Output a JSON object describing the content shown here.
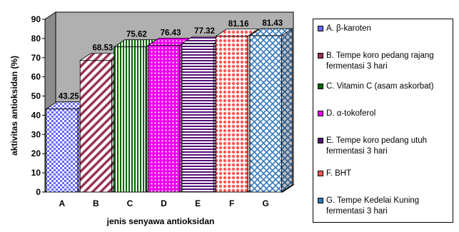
{
  "chart_data": {
    "type": "bar",
    "ylabel": "aktivitas antioksidan (%)",
    "xlabel": "jenis  senyawa antioksidan",
    "ylim": [
      0,
      90
    ],
    "yticks": [
      0,
      10,
      20,
      30,
      40,
      50,
      60,
      70,
      80,
      90
    ],
    "categories": [
      "A",
      "B",
      "C",
      "D",
      "E",
      "F",
      "G"
    ],
    "values": [
      43.25,
      68.53,
      75.62,
      76.43,
      77.32,
      81.16,
      81.43
    ],
    "value_labels": [
      "43.25",
      "68.53",
      "75.62",
      "76.43",
      "77.32",
      "81.16",
      "81.43"
    ],
    "three_d": true,
    "legend_placement": "right",
    "series": [
      {
        "name": "A. β-karoten",
        "color": "#6666ff",
        "pattern": "checker"
      },
      {
        "name": "B. Tempe koro pedang rajang fermentasi 3 hari",
        "color": "#993355",
        "pattern": "diagonal"
      },
      {
        "name": "C. Vitamin C (asam  askorbat)",
        "color": "#006600",
        "pattern": "vertical"
      },
      {
        "name": "D. α-tokoferol",
        "color": "#ee00ee",
        "pattern": "dots"
      },
      {
        "name": "E. Tempe koro pedang utuh fermentasi 3 hari",
        "color": "#551177",
        "pattern": "horizontal"
      },
      {
        "name": "F. BHT",
        "color": "#ff5555",
        "pattern": "bigdots"
      },
      {
        "name": "G. Tempe Kedelai Kuning fermentasi 3 hari",
        "color": "#3377bb",
        "pattern": "crosshatch"
      }
    ],
    "wall_color": "#b0b0b0"
  }
}
